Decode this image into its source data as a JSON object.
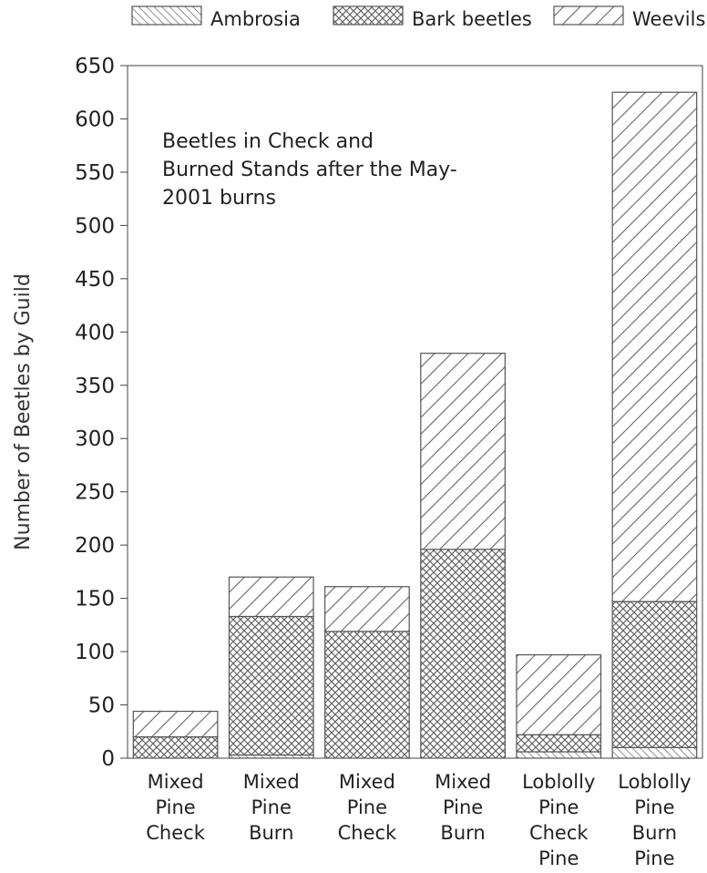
{
  "chart_data": {
    "type": "bar",
    "stacked": true,
    "ylabel": "Number of Beetles by Guild",
    "ylim": [
      0,
      650
    ],
    "yticks": [
      0,
      50,
      100,
      150,
      200,
      250,
      300,
      350,
      400,
      450,
      500,
      550,
      600,
      650
    ],
    "grid": false,
    "legend_position": "top",
    "annotation": [
      "Beetles in Check and",
      "Burned Stands after the May-",
      "2001 burns"
    ],
    "categories": [
      [
        "Mixed",
        "Pine",
        "Check"
      ],
      [
        "Mixed",
        "Pine",
        "Burn"
      ],
      [
        "Mixed",
        "Pine",
        "Check"
      ],
      [
        "Mixed",
        "Pine",
        "Burn"
      ],
      [
        "Loblolly",
        "Pine",
        "Check",
        "Pine"
      ],
      [
        "Loblolly",
        "Pine",
        "Burn",
        "Pine"
      ]
    ],
    "series": [
      {
        "name": "Ambrosia",
        "pattern": "back-diagonal-fine",
        "values": [
          0,
          3,
          0,
          0,
          6,
          10
        ]
      },
      {
        "name": "Bark beetles",
        "pattern": "crosshatch",
        "values": [
          20,
          130,
          119,
          196,
          16,
          137
        ]
      },
      {
        "name": "Weevils",
        "pattern": "forward-diagonal-wide",
        "values": [
          24,
          37,
          42,
          184,
          75,
          478
        ]
      }
    ],
    "colors": {
      "ink": "#555555",
      "axis": "#444444",
      "background": "#ffffff"
    }
  }
}
